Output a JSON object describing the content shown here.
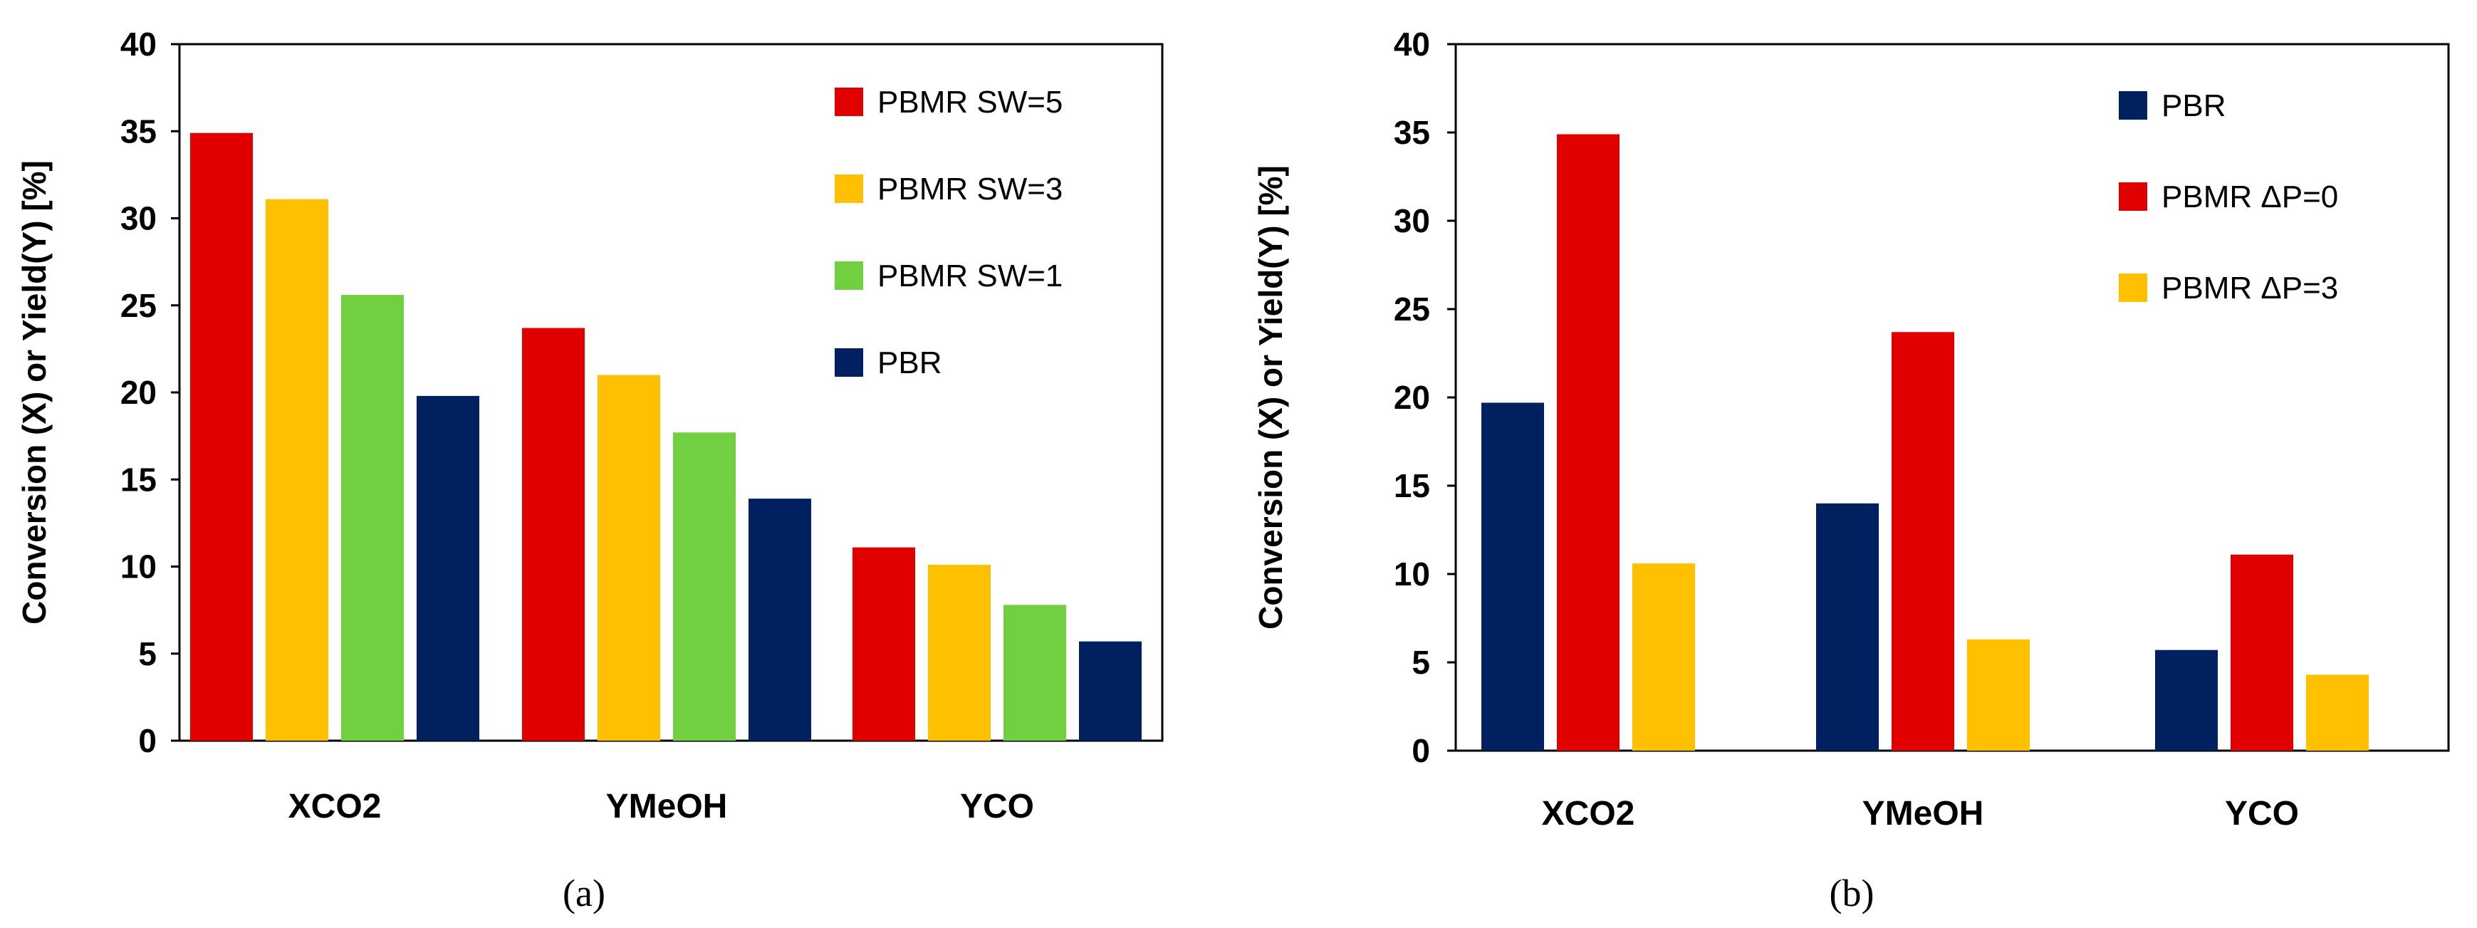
{
  "chart_data": [
    {
      "type": "bar",
      "panel_label": "(a)",
      "ylabel": "Conversion (X) or Yield(Y) [%]",
      "ylim": [
        0,
        40
      ],
      "yticks": [
        "0",
        "5",
        "10",
        "15",
        "20",
        "25",
        "30",
        "35",
        "40"
      ],
      "categories": [
        "XCO2",
        "YMeOH",
        "YCO"
      ],
      "legend_position": "top-right",
      "series": [
        {
          "name": "PBMR SW=5",
          "color": "#e00000",
          "values": [
            34.9,
            23.7,
            11.1
          ]
        },
        {
          "name": "PBMR SW=3",
          "color": "#ffc000",
          "values": [
            31.1,
            21.0,
            10.1
          ]
        },
        {
          "name": "PBMR SW=1",
          "color": "#70d040",
          "values": [
            25.6,
            17.7,
            7.8
          ]
        },
        {
          "name": "PBR",
          "color": "#002060",
          "values": [
            19.8,
            13.9,
            5.7
          ]
        }
      ]
    },
    {
      "type": "bar",
      "panel_label": "(b)",
      "ylabel": "Conversion (X) or Yield(Y) [%]",
      "ylim": [
        0,
        40
      ],
      "yticks": [
        "0",
        "5",
        "10",
        "15",
        "20",
        "25",
        "30",
        "35",
        "40"
      ],
      "categories": [
        "XCO2",
        "YMeOH",
        "YCO"
      ],
      "legend_position": "top-right",
      "series": [
        {
          "name": "PBR",
          "color": "#002060",
          "values": [
            19.7,
            14.0,
            5.7
          ]
        },
        {
          "name": "PBMR ΔP=0",
          "color": "#e00000",
          "values": [
            34.9,
            23.7,
            11.1
          ]
        },
        {
          "name": "PBMR ΔP=3",
          "color": "#ffc000",
          "values": [
            10.6,
            6.3,
            4.3
          ]
        }
      ]
    }
  ]
}
